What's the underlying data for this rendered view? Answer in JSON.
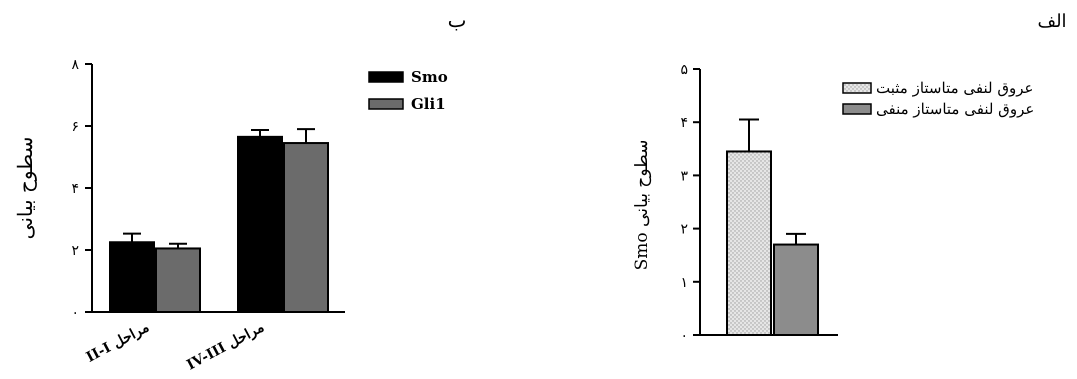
{
  "panels": {
    "b_label": "ب",
    "alef_label": "الف"
  },
  "chart_data": [
    {
      "panel": "ب",
      "type": "bar",
      "ylabel": "سطوح بیانی",
      "ylim": [
        0,
        8
      ],
      "yticks": [
        0,
        2,
        4,
        6,
        8
      ],
      "ytick_labels": [
        "۰",
        "۲",
        "۴",
        "۶",
        "۸"
      ],
      "categories": [
        "II-I مراحل",
        "IV-III مراحل"
      ],
      "series": [
        {
          "name": "Smo",
          "values": [
            2.25,
            5.65
          ],
          "errors": [
            0.28,
            0.22
          ],
          "color": "#000000"
        },
        {
          "name": "Gli1",
          "values": [
            2.05,
            5.45
          ],
          "errors": [
            0.15,
            0.45
          ],
          "color": "#6b6b6b"
        }
      ],
      "legend": "top-right"
    },
    {
      "panel": "الف",
      "type": "bar",
      "ylabel": "Smo سطوح بیانی",
      "ylim": [
        0,
        5
      ],
      "yticks": [
        0,
        1,
        2,
        3,
        4,
        5
      ],
      "ytick_labels": [
        "۰",
        "۱",
        "۲",
        "۳",
        "۴",
        "۵"
      ],
      "categories": [
        ""
      ],
      "series": [
        {
          "name": "عروق لنفی متاستاز مثبت",
          "values": [
            3.45
          ],
          "errors": [
            0.6
          ],
          "color": "#d9d9d9"
        },
        {
          "name": "عروق لنفی متاستاز منفی",
          "values": [
            1.7
          ],
          "errors": [
            0.2
          ],
          "color": "#8c8c8c"
        }
      ],
      "legend": "top-right"
    }
  ]
}
